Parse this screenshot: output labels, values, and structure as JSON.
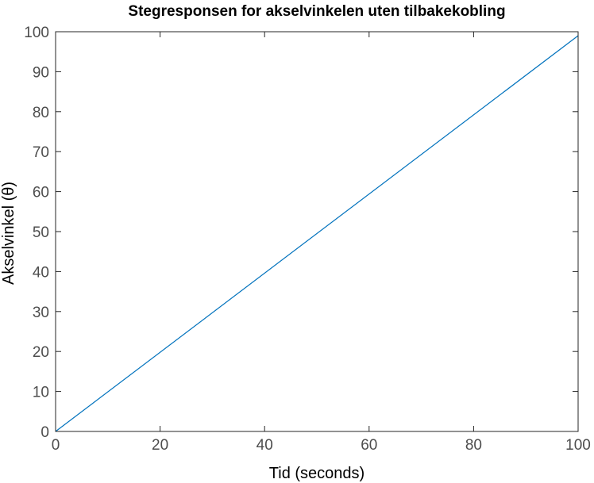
{
  "chart_data": {
    "type": "line",
    "title": "Stegresponsen for akselvinkelen uten tilbakekobling",
    "xlabel": "Tid (seconds)",
    "ylabel": "Akselvinkel (θ)",
    "xlim": [
      0,
      100
    ],
    "ylim": [
      0,
      100
    ],
    "xticks": [
      0,
      20,
      40,
      60,
      80,
      100
    ],
    "yticks": [
      0,
      10,
      20,
      30,
      40,
      50,
      60,
      70,
      80,
      90,
      100
    ],
    "xtick_labels": [
      "0",
      "20",
      "40",
      "60",
      "80",
      "100"
    ],
    "ytick_labels": [
      "0",
      "10",
      "20",
      "30",
      "40",
      "50",
      "60",
      "70",
      "80",
      "90",
      "100"
    ],
    "grid": false,
    "series": [
      {
        "color": "#0072bd",
        "x": [
          0,
          100
        ],
        "y": [
          0,
          99
        ]
      }
    ]
  }
}
